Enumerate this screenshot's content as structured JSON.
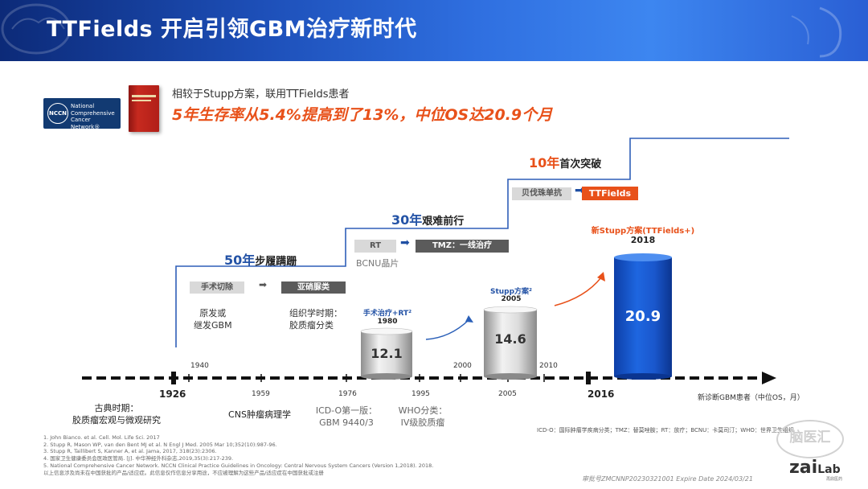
{
  "title": "TTFields 开启引领GBM治疗新时代",
  "nccn": {
    "logo_abbr": "NCCN",
    "logo_text": "National Comprehensive Cancer Network®"
  },
  "intro": "相较于Stupp方案，联用TTFields患者",
  "headline": "5年生存率从5.4%提高到了13%，中位OS达20.9个月",
  "stages": [
    {
      "years": "50年",
      "desc": "步履蹒跚",
      "from": "手术切除",
      "to": "亚硝脲类"
    },
    {
      "years": "30年",
      "desc": "艰难前行",
      "from": "RT",
      "to": "TMZ：一线治疗",
      "note": "BCNU晶片"
    },
    {
      "years": "10年",
      "desc": "首次突破",
      "from": "贝伐珠单抗",
      "to": "TTFields"
    }
  ],
  "col_labels": {
    "origin": "原发或\n继发GBM",
    "grading": "组织学时期：\n胶质瘤分类"
  },
  "cylinders": [
    {
      "label": "手术治疗+RT²",
      "year": "1980",
      "value": 12.1
    },
    {
      "label": "Stupp方案²",
      "year": "2005",
      "value": 14.6
    },
    {
      "label": "新Stupp方案(TTFields+)",
      "year": "2018",
      "value": 20.9
    }
  ],
  "axis_years": {
    "major": [
      "1926",
      "2016"
    ],
    "below": [
      "1959",
      "1976",
      "1995",
      "2005"
    ],
    "above": [
      "1940",
      "2000",
      "2010"
    ]
  },
  "axis_note": "新诊断GBM患者（中位OS，月）",
  "categories": [
    {
      "title": "古典时期：",
      "desc": "胶质瘤宏观与微观研究"
    },
    {
      "title": "CNS肿瘤病理学",
      "desc": ""
    },
    {
      "title": "ICD-O第一版：",
      "desc": "GBM 9440/3"
    },
    {
      "title": "WHO分类：",
      "desc": "IV级胶质瘤"
    }
  ],
  "abbr_note": "ICD-O：国际肿瘤学疾病分类；TMZ：替莫唑胺；RT：放疗；BCNU：卡莫司汀；WHO：世界卫生组织",
  "references": [
    "1. John Bianco. et al. Cell. Mol. Life Sci. 2017",
    "2. Stupp R, Mason WP, van den Bent MJ et al. N Engl J Med. 2005 Mar 10;352(10):987-96.",
    "3. Stupp R, Taillibert S, Kanner A, et al. Jama, 2017, 318(23):2306.",
    "4. 国家卫生健康委员会医政医管局. [J]. 中华神经外科杂志,2019,35(3):217-239.",
    "5. National Comprehensive Cancer Network. NCCN Clinical Practice Guidelines in Oncology: Central Nervous System Cancers (Version 1,2018). 2018.",
    "以上信息涉及尚未在中国获批的产品/适应症。此信息仅作信息分享用途，不应被理解为这些产品/适应症在中国获批或注册"
  ],
  "footer": "审批号ZMCNNP20230321001 Expire Date 2024/03/21",
  "logo": {
    "main": "zai",
    "lab": "Lab",
    "sub": "再鼎医药"
  },
  "watermark": "脑医汇",
  "colors": {
    "accent_blue": "#2453a6",
    "accent_orange": "#e8511a",
    "banner": "#1d4fb8"
  }
}
